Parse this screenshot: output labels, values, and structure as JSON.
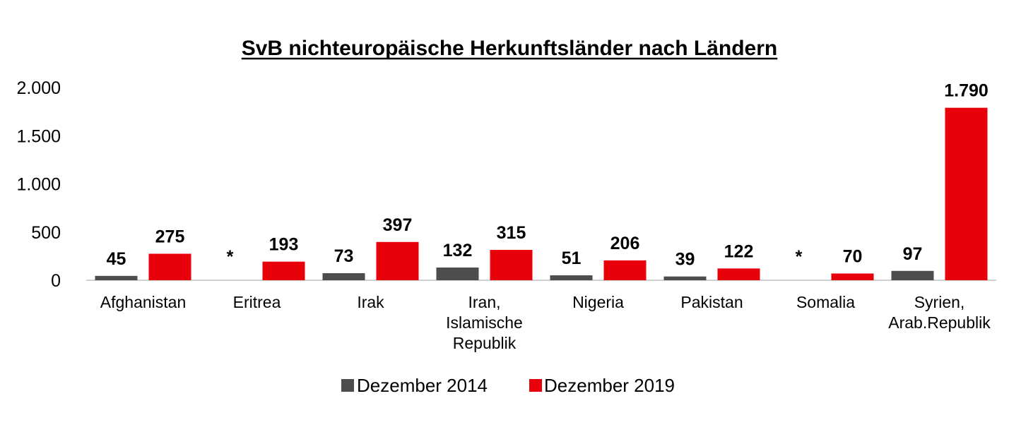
{
  "chart_data": {
    "type": "bar",
    "title": "SvB nichteuropäische Herkunftsländer nach Ländern",
    "categories": [
      [
        "Afghanistan"
      ],
      [
        "Eritrea"
      ],
      [
        "Irak"
      ],
      [
        "Iran,",
        "Islamische",
        "Republik"
      ],
      [
        "Nigeria"
      ],
      [
        "Pakistan"
      ],
      [
        "Somalia"
      ],
      [
        "Syrien,",
        "Arab.Republik"
      ]
    ],
    "series": [
      {
        "name": "Dezember 2014",
        "color": "#4d4d4d",
        "values": [
          45,
          null,
          73,
          132,
          51,
          39,
          null,
          97
        ],
        "labels": [
          "45",
          "*",
          "73",
          "132",
          "51",
          "39",
          "*",
          "97"
        ]
      },
      {
        "name": "Dezember 2019",
        "color": "#e8000b",
        "values": [
          275,
          193,
          397,
          315,
          206,
          122,
          70,
          1790
        ],
        "labels": [
          "275",
          "193",
          "397",
          "315",
          "206",
          "122",
          "70",
          "1.790"
        ]
      }
    ],
    "ylim": [
      0,
      2000
    ],
    "yticks": [
      0,
      500,
      1000,
      1500,
      2000
    ],
    "ytick_labels": [
      "0",
      "500",
      "1.000",
      "1.500",
      "2.000"
    ],
    "grid": false,
    "legend_position": "bottom"
  }
}
